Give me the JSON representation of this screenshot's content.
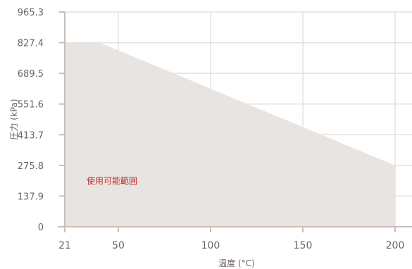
{
  "chart_data": {
    "type": "area",
    "x": [
      21,
      40,
      200
    ],
    "y": [
      827.4,
      827.4,
      275.8
    ],
    "xlabel": "温度 (°C)",
    "ylabel": "圧力 (kPa)",
    "xlim": [
      21,
      200
    ],
    "ylim": [
      0,
      965.3
    ],
    "xticks": [
      21,
      50,
      100,
      150,
      200
    ],
    "yticks": [
      0,
      137.9,
      275.8,
      413.7,
      551.6,
      689.5,
      827.4,
      965.3
    ],
    "xtick_labels": [
      "21",
      "50",
      "100",
      "150",
      "200"
    ],
    "ytick_labels": [
      "0",
      "137.9",
      "275.8",
      "413.7",
      "551.6",
      "689.5",
      "827.4",
      "965.3"
    ],
    "annotation": "使用可能範囲",
    "grid": true,
    "colors": {
      "fill": "#e8e4e1",
      "grid": "#e6e1dd",
      "axis": "#c9beb9",
      "tick_text": "#6e6360",
      "annotation": "#c0282a"
    }
  }
}
